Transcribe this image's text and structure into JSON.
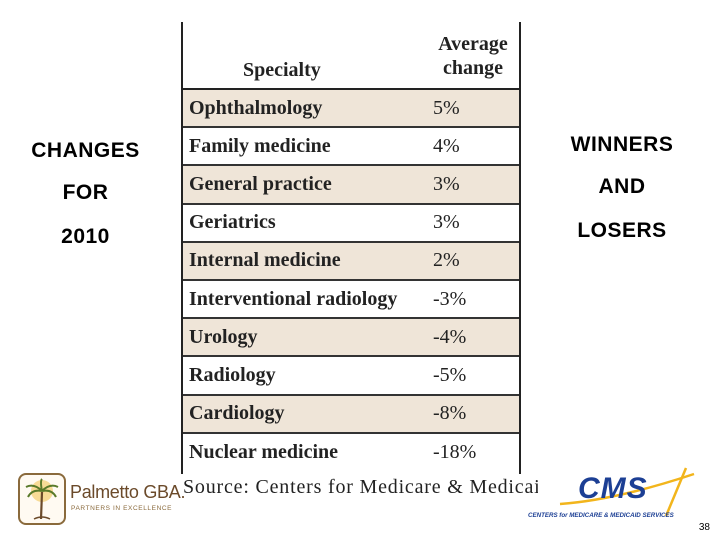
{
  "left_title": {
    "line1": "CHANGES",
    "line2": "FOR",
    "line3": "2010"
  },
  "right_title": {
    "line1": "WINNERS",
    "line2": "AND",
    "line3": "LOSERS"
  },
  "table": {
    "header_specialty": "Specialty",
    "header_change_line1": "Average",
    "header_change_line2": "change",
    "rows": [
      {
        "specialty": "Ophthalmology",
        "change": "5%"
      },
      {
        "specialty": "Family medicine",
        "change": "4%"
      },
      {
        "specialty": "General practice",
        "change": "3%"
      },
      {
        "specialty": "Geriatrics",
        "change": "3%"
      },
      {
        "specialty": "Internal medicine",
        "change": "2%"
      },
      {
        "specialty": "Interventional radiology",
        "change": "-3%"
      },
      {
        "specialty": "Urology",
        "change": "-4%"
      },
      {
        "specialty": "Radiology",
        "change": "-5%"
      },
      {
        "specialty": "Cardiology",
        "change": "-8%"
      },
      {
        "specialty": "Nuclear medicine",
        "change": "-18%"
      }
    ]
  },
  "source": "Source: Centers for Medicare & Medicaid Services",
  "logo_left": {
    "name": "Palmetto GBA.",
    "tagline": "PARTNERS IN EXCELLENCE"
  },
  "logo_right": {
    "name": "CMS",
    "tagline": "CENTERS for MEDICARE & MEDICAID SERVICES"
  },
  "page_number": "38",
  "colors": {
    "shaded_row": "#efe5d8",
    "cms_blue": "#1c3f94",
    "cms_gold": "#f2b51c",
    "palmetto_brown": "#6b4a2a"
  }
}
